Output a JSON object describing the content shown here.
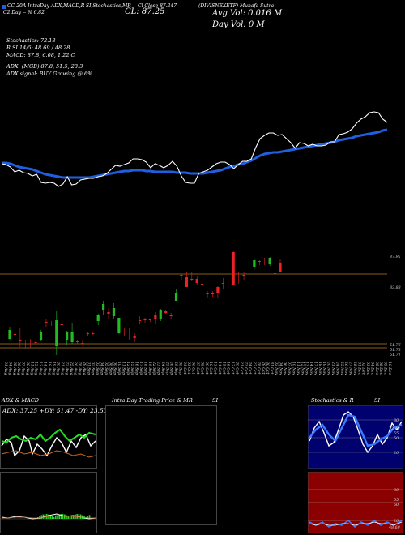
{
  "header": {
    "legend_label": "CC-20A IntraDay ADX,MACD,R",
    "stoch_label": "SI,Stochastics,MR",
    "close_label": "Cl Close 87.247",
    "ticker_label": "(DIVISNEXETF) Munafa Sutra",
    "line2_left": "C2 Day -- % 6.82",
    "cl_text": "CL: 87.25",
    "avg_vol": "Avg Vol: 0.016  M",
    "day_vol": "Day Vol: 0   M"
  },
  "indicators": {
    "stochastics": "Stochastics: 72.18",
    "rsi": "R   SI 14/5: 48.69 / 48.28",
    "macd": "MACD: 87.8,  6.08, 1.22  C",
    "adx": "ADX:   (MGB) 87.8,  51.5,  23.3",
    "adx_signal": "ADX  signal:    BUY Growing @ 6%"
  },
  "colors": {
    "price_line": "#ffffff",
    "ma_line": "#1f5fe0",
    "up_candle": "#22bb22",
    "down_candle": "#ee2222",
    "level_line": "#b87a1a"
  },
  "chart_data": [
    {
      "type": "line",
      "x": [
        "01 Aug",
        "04 Aug",
        "05 Aug",
        "06 Aug",
        "07 Aug",
        "08 Aug",
        "11 Aug",
        "12 Aug",
        "13 Aug",
        "14 Aug",
        "18 Aug",
        "19 Aug",
        "20 Aug",
        "21 Aug",
        "22 Aug",
        "25 Aug",
        "26 Aug",
        "28 Aug",
        "29 Aug",
        "01 Sep",
        "02 Sep",
        "03 Sep",
        "04 Sep",
        "05 Sep",
        "08 Sep",
        "09 Sep",
        "10 Sep",
        "11 Sep",
        "12 Sep",
        "15 Sep",
        "16 Sep",
        "17 Sep",
        "18 Sep",
        "19 Sep",
        "22 Sep",
        "23 Sep",
        "24 Sep",
        "25 Sep",
        "26 Sep",
        "29 Sep",
        "30 Sep",
        "01 Oct",
        "03 Oct",
        "06 Oct",
        "07 Oct",
        "08 Oct",
        "09 Oct",
        "10 Oct",
        "13 Oct",
        "14 Oct",
        "15 Oct",
        "16 Oct",
        "17 Oct",
        "20 Oct",
        "21 Oct",
        "23 Oct",
        "24 Oct",
        "27 Oct",
        "28 Oct",
        "29 Oct",
        "30 Oct",
        "31 Oct",
        "03 Nov",
        "04 Nov",
        "06 Nov",
        "07 Nov",
        "10 Nov",
        "11 Nov",
        "12 Nov",
        "13 Nov",
        "14 Nov",
        "17 Nov",
        "18 Nov",
        "19 Nov",
        "20 Nov",
        "21 Nov",
        "24 Nov",
        "25 Nov",
        "26 Nov",
        "27 Nov",
        "28 Nov",
        "01 Dec",
        "02 Dec",
        "03 Dec",
        "04 Dec",
        "05 Dec",
        "08 Dec",
        "09 Dec",
        "10 Dec"
      ],
      "series": [
        {
          "values": [
            202,
            203,
            206,
            212,
            210,
            213,
            214,
            217,
            215,
            225,
            226,
            225,
            226,
            230,
            227,
            218,
            228,
            227,
            222,
            221,
            220,
            220,
            218,
            217,
            214,
            209,
            204,
            205,
            203,
            201,
            196,
            196,
            197,
            200,
            207,
            202,
            204,
            207,
            204,
            199,
            205,
            217,
            225,
            226,
            226,
            214,
            212,
            210,
            206,
            202,
            200,
            200,
            203,
            208,
            203,
            199,
            199,
            196,
            182,
            171,
            167,
            164,
            164,
            167,
            166,
            171,
            176,
            183,
            176,
            177,
            180,
            178,
            180,
            180,
            179,
            175,
            175,
            166,
            165,
            163,
            159,
            152,
            147,
            144,
            139,
            138,
            139,
            147,
            151
          ]
        },
        {
          "values": [
            201,
            201,
            202,
            204,
            206,
            207,
            208,
            209,
            211,
            213,
            215,
            216,
            217,
            218,
            219,
            219,
            219,
            219,
            219,
            219,
            219,
            218,
            217,
            216,
            215,
            214,
            213,
            212,
            211,
            211,
            210,
            210,
            210,
            211,
            211,
            212,
            212,
            212,
            212,
            212,
            213,
            213,
            213,
            214,
            214,
            214,
            214,
            213,
            212,
            211,
            210,
            208,
            206,
            205,
            203,
            202,
            200,
            198,
            195,
            192,
            190,
            189,
            188,
            188,
            187,
            186,
            185,
            184,
            183,
            182,
            181,
            180,
            179,
            178,
            177,
            176,
            175,
            173,
            172,
            171,
            170,
            168,
            167,
            166,
            165,
            164,
            163,
            161,
            160
          ]
        }
      ]
    },
    {
      "type": "bar",
      "value_labels": [
        "87.9x",
        "83.83",
        "51.76",
        "51.73",
        "51.71"
      ],
      "candles": [
        [
          403,
          407,
          418,
          420
        ],
        [
          404,
          412,
          413,
          425
        ],
        [
          405,
          420,
          420,
          428
        ],
        [
          420,
          425,
          426,
          430
        ],
        [
          418,
          425,
          425,
          429
        ],
        [
          420,
          422,
          422,
          426
        ],
        [
          407,
          410,
          420,
          421
        ],
        [
          393,
          397,
          398,
          404
        ],
        [
          396,
          398,
          399,
          402
        ],
        [
          384,
          395,
          427,
          438
        ],
        [
          395,
          400,
          401,
          403
        ],
        [
          408,
          409,
          420,
          426
        ],
        [
          398,
          410,
          422,
          424
        ],
        [
          419,
          421,
          422,
          424
        ],
        [
          419,
          423,
          424,
          425
        ],
        [
          410,
          411,
          412,
          414
        ],
        [
          410,
          411,
          411,
          413
        ],
        [
          387,
          388,
          396,
          401
        ],
        [
          371,
          375,
          382,
          388
        ],
        [
          380,
          385,
          387,
          393
        ],
        [
          374,
          380,
          390,
          393
        ],
        [
          392,
          392,
          411,
          412
        ],
        [
          405,
          409,
          410,
          415
        ],
        [
          405,
          409,
          410,
          419
        ],
        [
          411,
          415,
          417,
          422
        ],
        [
          390,
          395,
          396,
          400
        ],
        [
          392,
          394,
          395,
          399
        ],
        [
          393,
          394,
          395,
          397
        ],
        [
          385,
          389,
          394,
          400
        ],
        [
          381,
          382,
          393,
          396
        ],
        [
          383,
          384,
          386,
          387
        ],
        [
          386,
          388,
          390,
          393
        ],
        [
          356,
          361,
          371,
          371
        ],
        [
          338,
          339,
          339,
          345
        ],
        [
          336,
          342,
          354,
          354
        ],
        [
          336,
          344,
          344,
          347
        ],
        [
          340,
          344,
          349,
          351
        ],
        [
          348,
          350,
          352,
          357
        ],
        [
          359,
          362,
          362,
          368
        ],
        [
          359,
          362,
          362,
          367
        ],
        [
          353,
          354,
          362,
          368
        ],
        [
          343,
          349,
          349,
          356
        ],
        [
          343,
          345,
          345,
          357
        ],
        [
          310,
          311,
          351,
          352
        ],
        [
          336,
          340,
          340,
          350
        ],
        [
          336,
          339,
          341,
          345
        ],
        [
          332,
          335,
          335,
          339
        ],
        [
          320,
          321,
          330,
          333
        ],
        [
          321,
          322,
          322,
          327
        ],
        [
          318,
          319,
          319,
          327
        ],
        [
          317,
          318,
          326,
          328
        ],
        [
          332,
          337,
          337,
          339
        ],
        [
          319,
          324,
          335,
          335
        ]
      ]
    },
    {
      "type": "line",
      "title": "ADX  & MACD",
      "summary": "ADX: 37.25 +DY: 51.47 -DY: 23.53"
    },
    {
      "type": "area",
      "title": "Intra Day Trading Price  & MR",
      "title_right": "SI"
    },
    {
      "type": "line",
      "title": "Stochastics & R",
      "title_right": "SI",
      "stoch_labels": [
        "80",
        "55",
        "50",
        "20",
        "72.18"
      ],
      "rsi_labels": [
        "80",
        "55",
        "50",
        "20",
        "48.69"
      ]
    }
  ]
}
